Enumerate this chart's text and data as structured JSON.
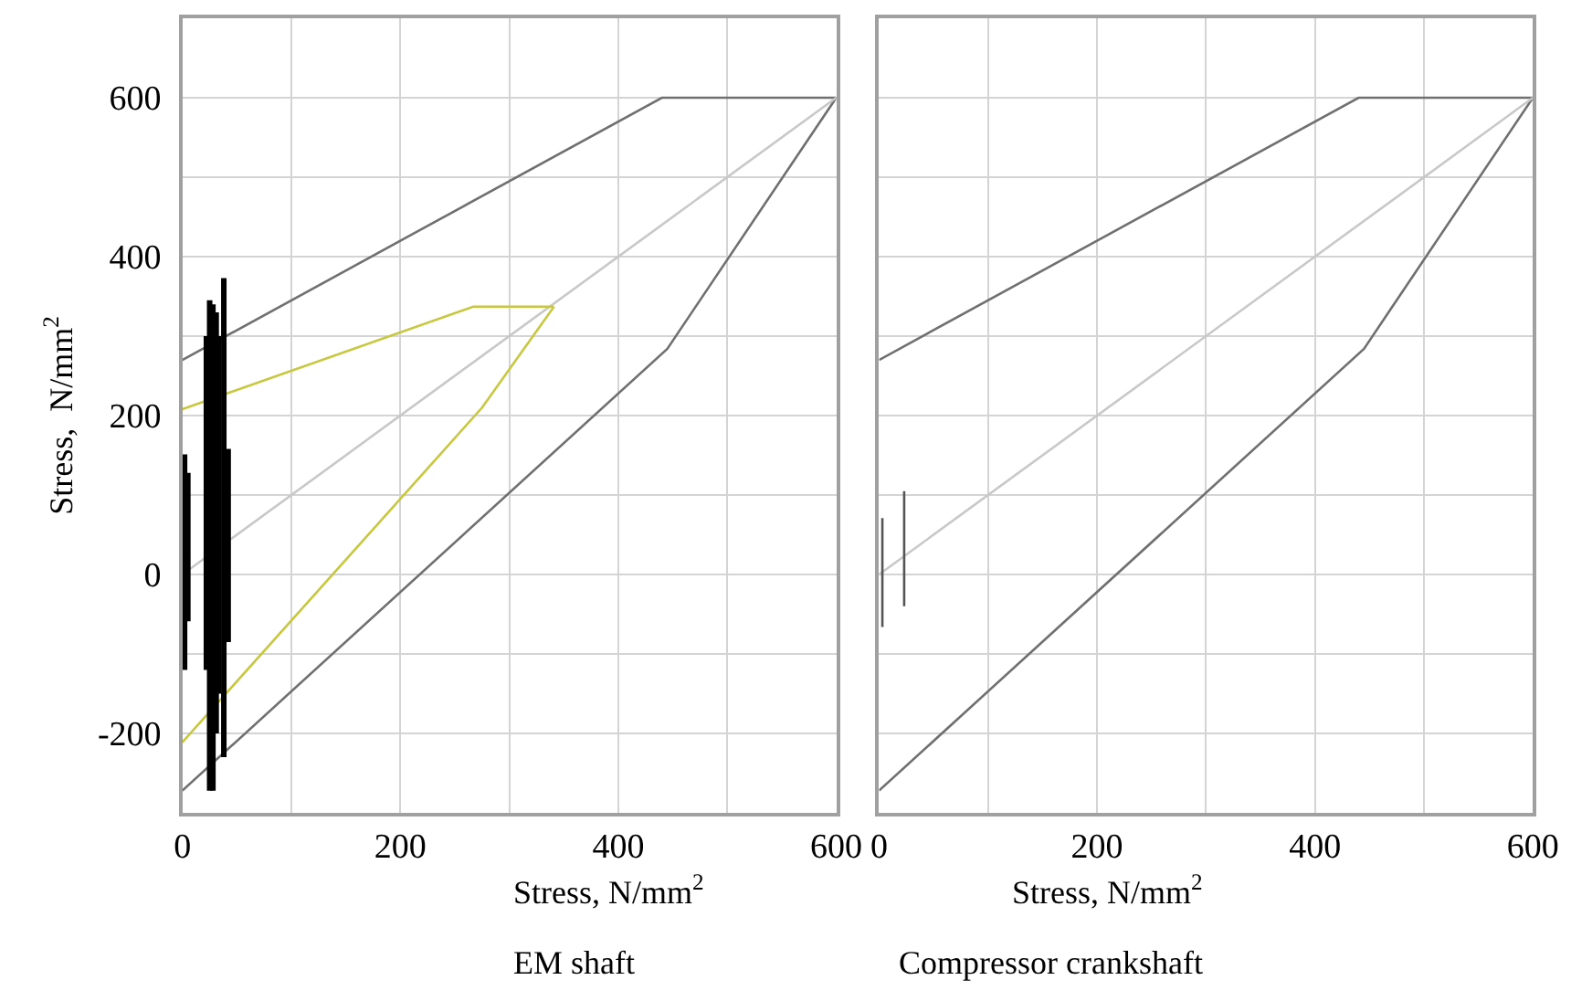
{
  "chart_data": [
    {
      "type": "line",
      "xlabel": "Stress, N/mm$^{2}$",
      "ylabel": "Stress,  N/mm$^{2}$",
      "annotations": [
        "EM shaft"
      ],
      "xlim": [
        0,
        600
      ],
      "ylim": [
        -300,
        700
      ],
      "xticks": [
        0,
        {
          "value": 100,
          "label": null
        },
        200,
        {
          "value": 300,
          "label": null
        },
        400,
        {
          "value": 500,
          "label": null
        },
        600
      ],
      "yticks": [
        {
          "value": -300,
          "label": null
        },
        -200,
        {
          "value": -100,
          "label": null
        },
        0,
        {
          "value": 100,
          "label": null
        },
        200,
        {
          "value": 300,
          "label": null
        },
        400,
        {
          "value": 500,
          "label": null
        },
        600,
        {
          "value": 700,
          "label": null
        }
      ],
      "grid": true,
      "marker": "none",
      "line_style": "solid",
      "series": [
        {
          "color": "#707070",
          "x": [
            0,
            440,
            600
          ],
          "values": [
            270,
            600,
            600
          ]
        },
        {
          "color": "#707070",
          "x": [
            0,
            445,
            600
          ],
          "values": [
            -272,
            284,
            600
          ]
        },
        {
          "color": "#c8c8c8",
          "x": [
            0,
            600
          ],
          "values": [
            0,
            600
          ]
        },
        {
          "color": "#c8c840",
          "x": [
            0,
            267,
            341
          ],
          "values": [
            208,
            337,
            337
          ]
        },
        {
          "color": "#c8c840",
          "x": [
            0,
            275,
            341
          ],
          "values": [
            -211,
            210,
            337
          ]
        },
        {
          "color": "#000000",
          "x": [
            2,
            2,
            null,
            5,
            5,
            null,
            22,
            22,
            null,
            25,
            25,
            null,
            28,
            28,
            null,
            31,
            31,
            null,
            33,
            33,
            null,
            38,
            38,
            null,
            42,
            42
          ],
          "values": [
            151,
            -120,
            null,
            128,
            -59,
            null,
            300,
            -120,
            null,
            345,
            -272,
            null,
            340,
            -272,
            null,
            330,
            -200,
            null,
            300,
            -150,
            null,
            373,
            -230,
            null,
            158,
            -85
          ]
        }
      ]
    },
    {
      "type": "line",
      "xlabel": "Stress, N/mm$^{2}$",
      "annotations": [
        "Compressor crankshaft"
      ],
      "tick_labels": "x",
      "xlim": [
        0,
        600
      ],
      "ylim": [
        -300,
        700
      ],
      "xticks": [
        0,
        {
          "value": 100,
          "label": null
        },
        200,
        {
          "value": 300,
          "label": null
        },
        400,
        {
          "value": 500,
          "label": null
        },
        600
      ],
      "yticks": [
        {
          "value": -300,
          "label": null
        },
        {
          "value": -200,
          "label": null
        },
        {
          "value": -100,
          "label": null
        },
        {
          "value": 0,
          "label": null
        },
        {
          "value": 100,
          "label": null
        },
        {
          "value": 200,
          "label": null
        },
        {
          "value": 300,
          "label": null
        },
        {
          "value": 400,
          "label": null
        },
        {
          "value": 500,
          "label": null
        },
        {
          "value": 600,
          "label": null
        },
        {
          "value": 700,
          "label": null
        }
      ],
      "grid": true,
      "marker": "none",
      "line_style": "solid",
      "series": [
        {
          "color": "#707070",
          "x": [
            0,
            440,
            600
          ],
          "values": [
            270,
            600,
            600
          ]
        },
        {
          "color": "#707070",
          "x": [
            0,
            445,
            600
          ],
          "values": [
            -272,
            284,
            600
          ]
        },
        {
          "color": "#c8c8c8",
          "x": [
            0,
            600
          ],
          "values": [
            0,
            600
          ]
        },
        {
          "color": "#555555",
          "x": [
            3,
            3,
            null,
            23,
            23
          ],
          "values": [
            71,
            -66,
            null,
            105,
            -40
          ]
        }
      ]
    }
  ]
}
